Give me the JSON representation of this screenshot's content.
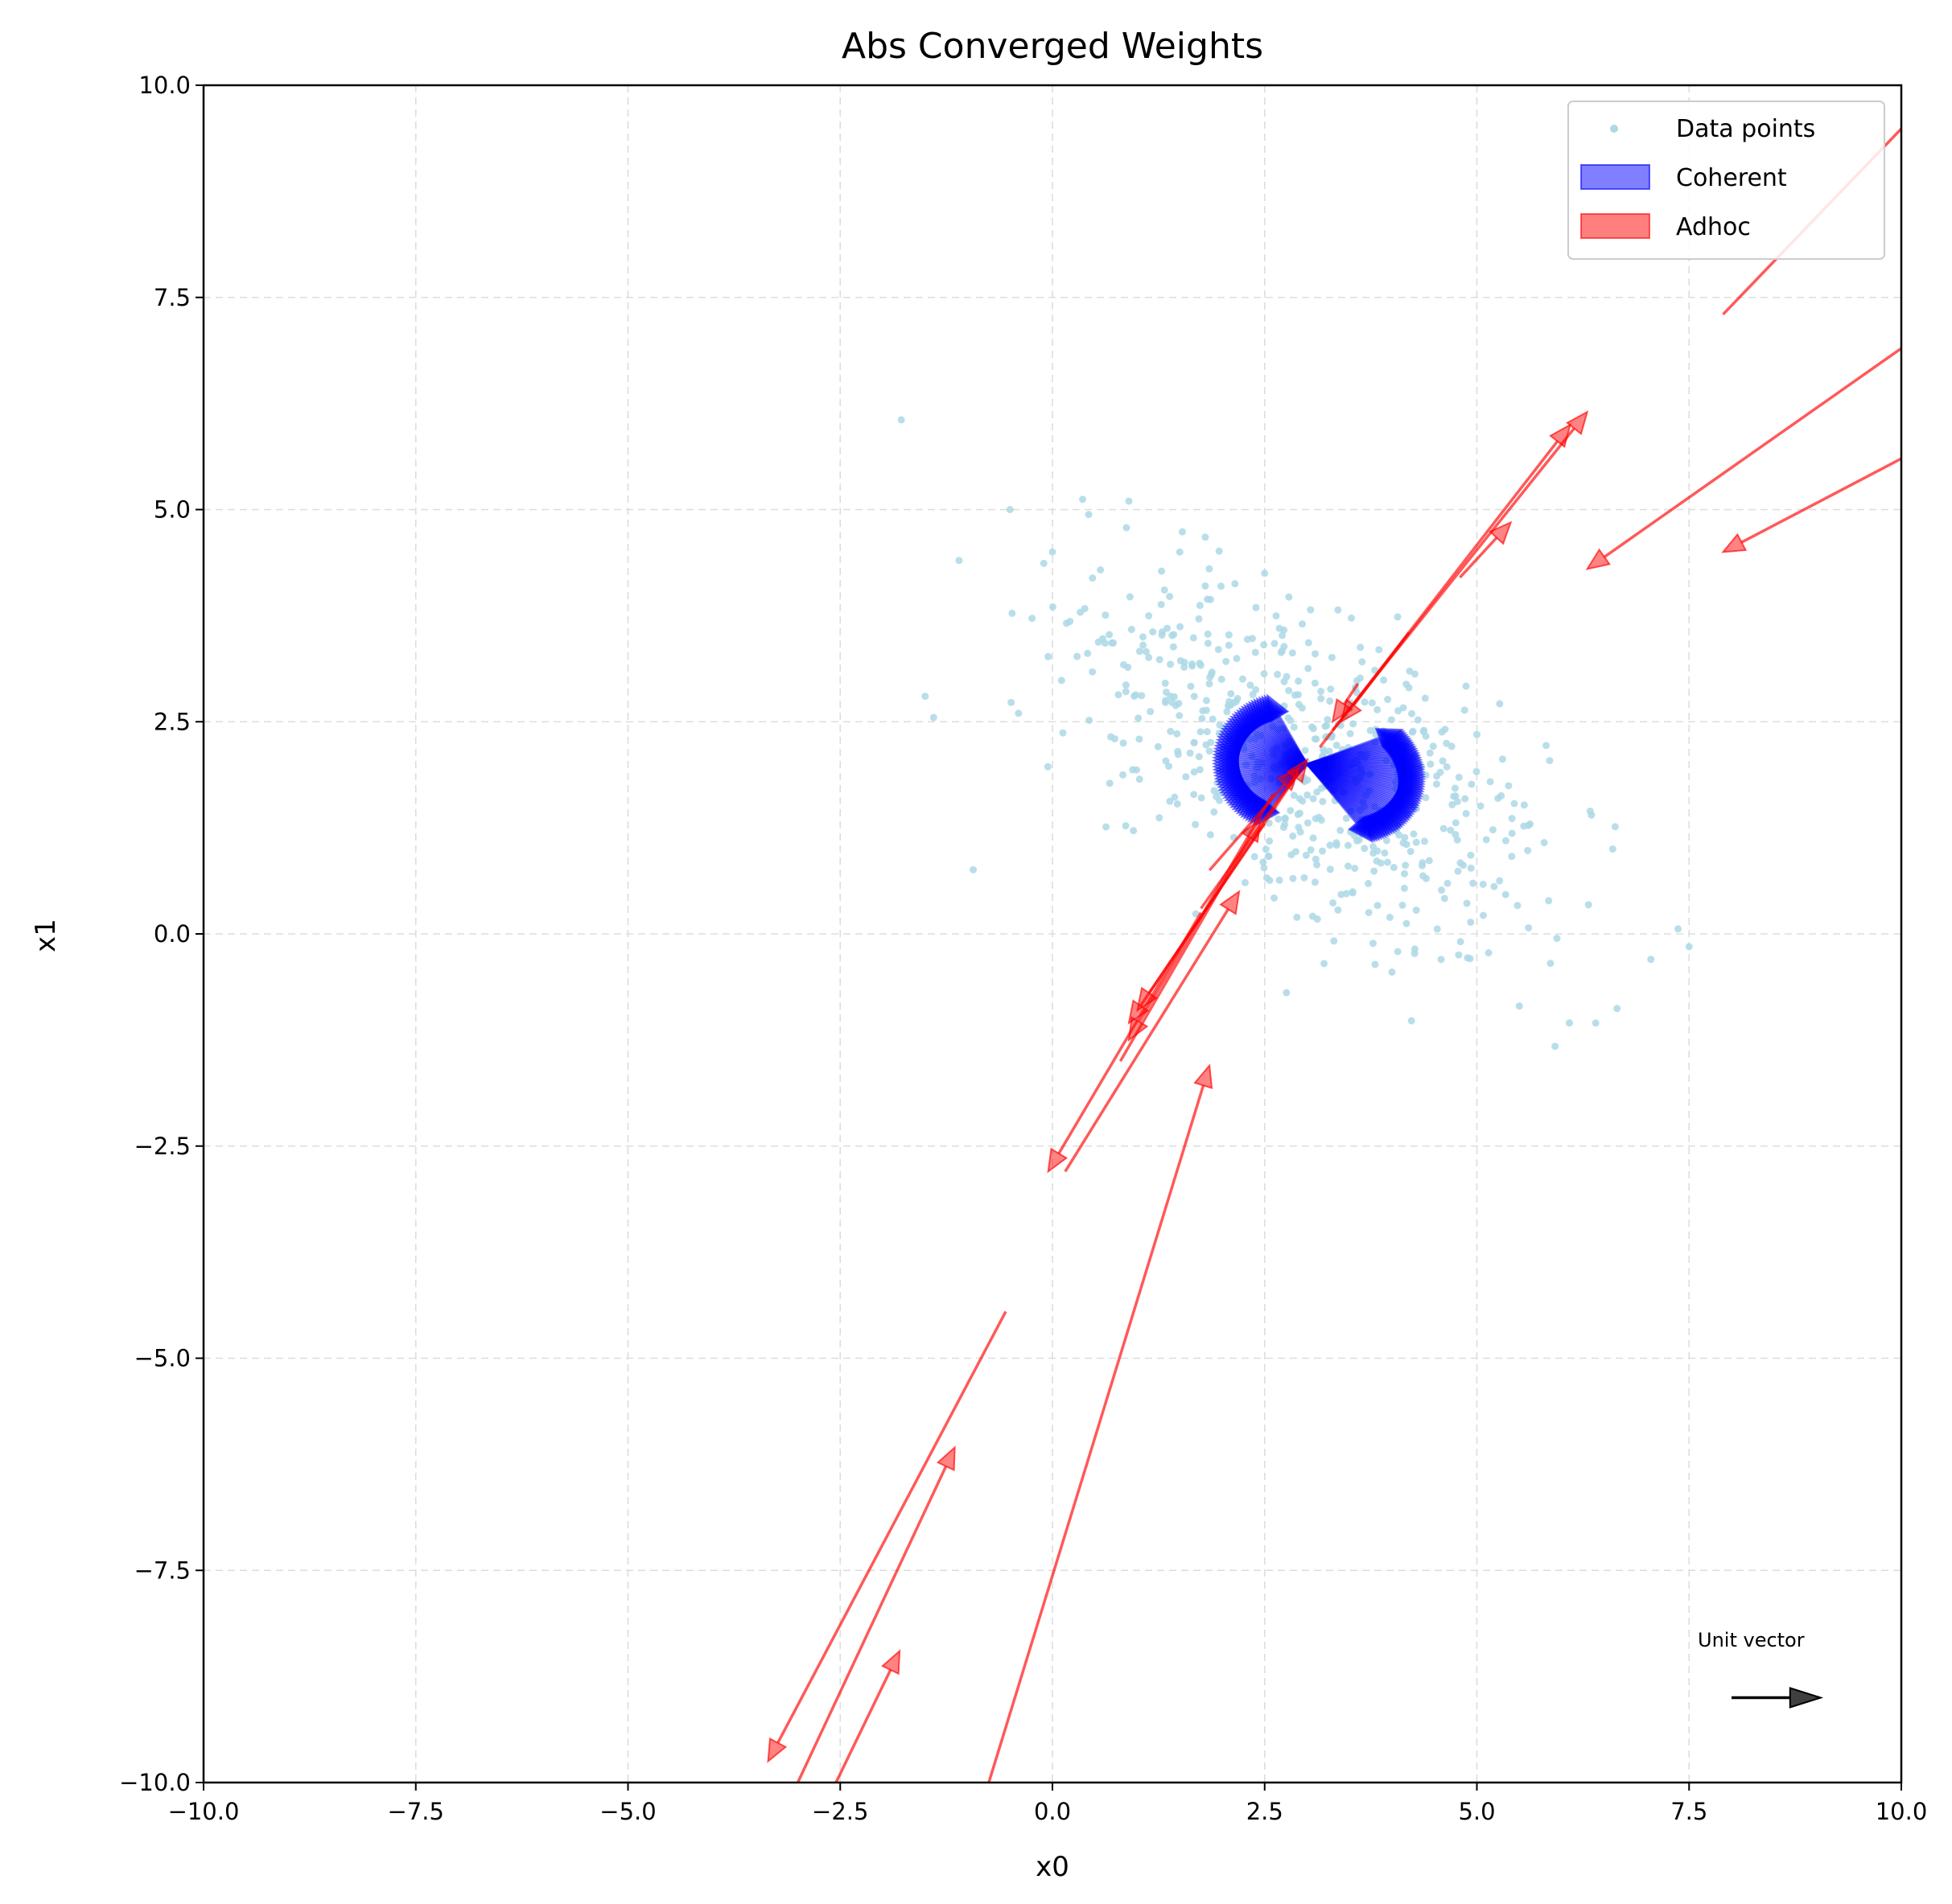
{
  "chart_data": {
    "type": "scatter",
    "title": "Abs Converged Weights",
    "xlabel": "x0",
    "ylabel": "x1",
    "xlim": [
      -10,
      10
    ],
    "ylim": [
      -10,
      10
    ],
    "xticks": [
      -10,
      -7.5,
      -5,
      -2.5,
      0,
      2.5,
      5,
      7.5,
      10
    ],
    "yticks": [
      -10,
      -7.5,
      -5,
      -2.5,
      0,
      2.5,
      5,
      7.5,
      10
    ],
    "xtick_labels": [
      "−10.0",
      "−7.5",
      "−5.0",
      "−2.5",
      "0.0",
      "2.5",
      "5.0",
      "7.5",
      "10.0"
    ],
    "ytick_labels": [
      "−10.0",
      "−7.5",
      "−5.0",
      "−2.5",
      "0.0",
      "2.5",
      "5.0",
      "7.5",
      "10.0"
    ],
    "grid": true,
    "legend_position": "top-right",
    "legend": [
      "Data points",
      "Coherent",
      "Adhoc"
    ],
    "annotation": "Unit vector",
    "colors": {
      "data_points": "#add8e6",
      "coherent": "#0000ff",
      "adhoc": "#ff0000",
      "unit_vector": "#000000"
    },
    "data_points": {
      "description": "scatter cloud elongated from upper-left to lower-right",
      "count": 600,
      "center": [
        3.0,
        2.0
      ],
      "x_range": [
        -1.5,
        7.5
      ],
      "y_range": [
        -1.1,
        5.1
      ],
      "samples": [
        [
          -0.5,
          5.0
        ],
        [
          0.9,
          5.1
        ],
        [
          -1.5,
          2.8
        ],
        [
          -1.4,
          2.55
        ],
        [
          -0.4,
          2.6
        ],
        [
          7.5,
          -0.15
        ],
        [
          7.05,
          -0.3
        ],
        [
          6.4,
          -1.05
        ],
        [
          6.6,
          1.0
        ],
        [
          6.35,
          1.4
        ],
        [
          5.0,
          2.35
        ],
        [
          4.2,
          2.9
        ],
        [
          1.5,
          4.5
        ],
        [
          0.0,
          4.5
        ],
        [
          -1.1,
          4.4
        ],
        [
          1.8,
          4.1
        ],
        [
          2.5,
          4.25
        ],
        [
          3.2,
          -0.35
        ],
        [
          4.0,
          -0.45
        ],
        [
          5.5,
          -0.85
        ]
      ]
    },
    "coherent_vectors": {
      "description": "dense fan of short vectors around a common origin",
      "origin": [
        3.0,
        2.0
      ],
      "lobes": [
        {
          "angle_from_deg": 120,
          "angle_to_deg": 230,
          "length": 1.1
        },
        {
          "angle_from_deg": -50,
          "angle_to_deg": 20,
          "length": 1.4
        }
      ]
    },
    "adhoc_vectors": [
      {
        "x0": 7.9,
        "y0": 7.3,
        "x1": 10.3,
        "y1": 9.8
      },
      {
        "x0": 10.0,
        "y0": 6.9,
        "x1": 6.3,
        "y1": 4.3
      },
      {
        "x0": 10.0,
        "y0": 5.6,
        "x1": 7.9,
        "y1": 4.5
      },
      {
        "x0": 3.3,
        "y0": 2.4,
        "x1": 6.3,
        "y1": 6.15
      },
      {
        "x0": 3.15,
        "y0": 2.2,
        "x1": 6.1,
        "y1": 6.0
      },
      {
        "x0": 4.8,
        "y0": 4.2,
        "x1": 5.4,
        "y1": 4.85
      },
      {
        "x0": 4.2,
        "y0": 3.55,
        "x1": 3.4,
        "y1": 2.5
      },
      {
        "x0": 3.6,
        "y0": 2.95,
        "x1": 3.3,
        "y1": 2.5
      },
      {
        "x0": 1.75,
        "y0": 0.3,
        "x1": 3.0,
        "y1": 2.05
      },
      {
        "x0": 1.85,
        "y0": 0.75,
        "x1": 2.9,
        "y1": 1.95
      },
      {
        "x0": 2.6,
        "y0": 1.65,
        "x1": 0.9,
        "y1": -1.25
      },
      {
        "x0": 2.5,
        "y0": 1.3,
        "x1": 1.0,
        "y1": -0.9
      },
      {
        "x0": 2.9,
        "y0": 1.9,
        "x1": 0.9,
        "y1": -1.05
      },
      {
        "x0": 1.75,
        "y0": 0.25,
        "x1": -0.05,
        "y1": -2.8
      },
      {
        "x0": 0.15,
        "y0": -2.8,
        "x1": 2.2,
        "y1": 0.5
      },
      {
        "x0": 0.8,
        "y0": -1.5,
        "x1": 2.45,
        "y1": 1.35
      },
      {
        "x0": -0.55,
        "y0": -4.45,
        "x1": -3.35,
        "y1": -9.75
      },
      {
        "x0": -3.0,
        "y0": -10.0,
        "x1": -1.15,
        "y1": -6.05
      },
      {
        "x0": -2.55,
        "y0": -10.0,
        "x1": -1.8,
        "y1": -8.45
      },
      {
        "x0": -0.75,
        "y0": -10.0,
        "x1": 1.85,
        "y1": -1.55
      }
    ],
    "unit_vector": {
      "x0": 8.0,
      "y0": -9.0,
      "x1": 9.05,
      "y1": -9.0
    }
  }
}
